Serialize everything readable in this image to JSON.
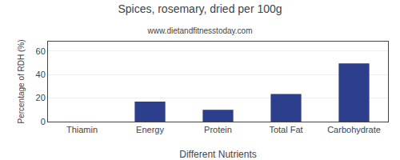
{
  "chart_data": {
    "type": "bar",
    "title": "Spices, rosemary, dried per 100g",
    "subtitle": "www.dietandfitnesstoday.com",
    "xlabel": "Different Nutrients",
    "ylabel": "Percentage of RDH (%)",
    "categories": [
      "Thiamin",
      "Energy",
      "Protein",
      "Total Fat",
      "Carbohydrate"
    ],
    "values": [
      0,
      17,
      10,
      23.5,
      49.5
    ],
    "color": "#2d3f8c",
    "ylim": [
      0,
      68
    ],
    "yticks": [
      0,
      20,
      40,
      60
    ],
    "grid": true
  }
}
